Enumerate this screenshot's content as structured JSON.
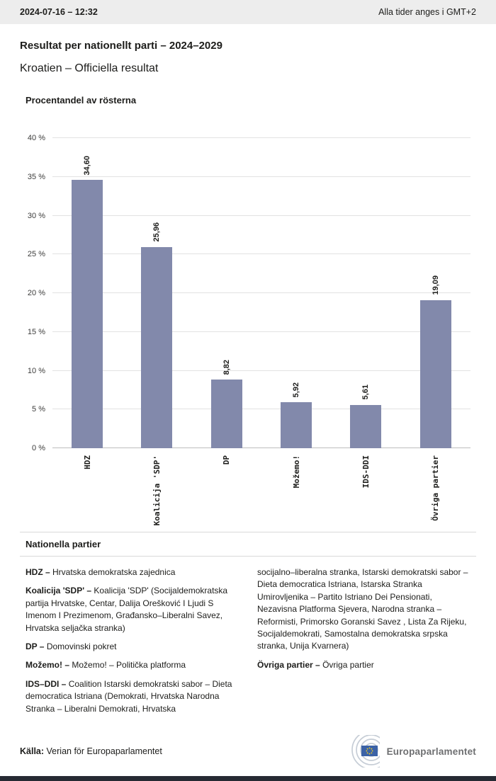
{
  "header": {
    "datetime": "2024-07-16 – 12:32",
    "timezone_note": "Alla tider anges i GMT+2"
  },
  "page": {
    "title": "Resultat per nationellt parti – 2024–2029",
    "subtitle": "Kroatien – Officiella resultat"
  },
  "chart_data": {
    "type": "bar",
    "title": "Procentandel av rösterna",
    "categories": [
      "HDZ",
      "Koalicija 'SDP'",
      "DP",
      "Možemo!",
      "IDS-DDI",
      "Övriga partier"
    ],
    "values": [
      34.6,
      25.96,
      8.82,
      5.92,
      5.61,
      19.09
    ],
    "value_labels": [
      "34,60",
      "25,96",
      "8,82",
      "5,92",
      "5,61",
      "19,09"
    ],
    "xlabel": "",
    "ylabel": "",
    "ylim": [
      0,
      40
    ],
    "ytick_step": 5,
    "ytick_labels": [
      "0 %",
      "5 %",
      "10 %",
      "15 %",
      "20 %",
      "25 %",
      "30 %",
      "35 %",
      "40 %"
    ],
    "bar_color": "#8289ab",
    "grid": true,
    "legend": false
  },
  "parties": {
    "heading": "Nationella partier",
    "left": [
      {
        "label": "HDZ –",
        "text": "Hrvatska demokratska zajednica"
      },
      {
        "label": "Koalicija 'SDP' –",
        "text": "Koalicija 'SDP' (Socijaldemokratska partija Hrvatske, Centar, Dalija Orešković I Ljudi S Imenom I Prezimenom, Građansko–Liberalni Savez, Hrvatska seljačka stranka)"
      },
      {
        "label": "DP –",
        "text": "Domovinski pokret"
      },
      {
        "label": "Možemo! –",
        "text": "Možemo! – Politička platforma"
      },
      {
        "label": "IDS–DDI –",
        "text": "Coalition Istarski demokratski sabor – Dieta democratica Istriana (Demokrati, Hrvatska Narodna Stranka – Liberalni Demokrati, Hrvatska"
      }
    ],
    "right": [
      {
        "label": "",
        "text": "socijalno–liberalna stranka, Istarski demokratski sabor – Dieta democratica Istriana, Istarska Stranka Umirovljenika – Partito Istriano Dei Pensionati, Nezavisna Platforma Sjevera, Narodna stranka – Reformisti, Primorsko Goranski Savez , Lista Za Rijeku, Socijaldemokrati, Samostalna demokratska srpska stranka, Unija Kvarnera)"
      },
      {
        "label": "Övriga partier –",
        "text": "Övriga partier"
      }
    ]
  },
  "footer": {
    "source_label": "Källa:",
    "source_text": "Verian för Europaparlamentet",
    "logo_text": "Europaparlamentet",
    "logo_colors": {
      "arcs": "#c6cdd6",
      "flag_blue": "#3b62a6",
      "star_yellow": "#ffd617"
    }
  }
}
